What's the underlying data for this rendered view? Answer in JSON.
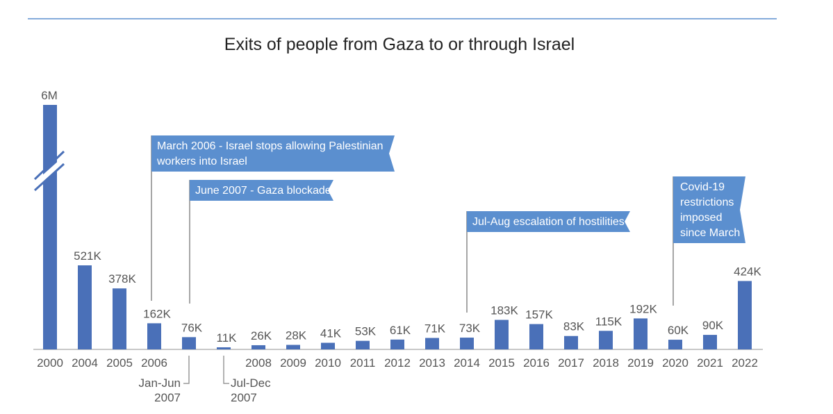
{
  "chart_data": {
    "type": "bar",
    "title": "Exits of people from Gaza to or through Israel",
    "xlabel": "",
    "ylabel": "",
    "axis_break": "between 521K and 6M on first bar",
    "categories": [
      "2000",
      "2004",
      "2005",
      "2006",
      "Jan-Jun 2007",
      "Jul-Dec 2007",
      "2008",
      "2009",
      "2010",
      "2011",
      "2012",
      "2013",
      "2014",
      "2015",
      "2016",
      "2017",
      "2018",
      "2019",
      "2020",
      "2021",
      "2022"
    ],
    "tick_labels": [
      "2000",
      "2004",
      "2005",
      "2006",
      "",
      "",
      "2008",
      "2009",
      "2010",
      "2011",
      "2012",
      "2013",
      "2014",
      "2015",
      "2016",
      "2017",
      "2018",
      "2019",
      "2020",
      "2021",
      "2022"
    ],
    "callout_labels": [
      {
        "index": 4,
        "line1": "Jan-Jun",
        "line2": "2007"
      },
      {
        "index": 5,
        "line1": "Jul-Dec",
        "line2": "2007"
      }
    ],
    "values": [
      6000000,
      521000,
      378000,
      162000,
      76000,
      11000,
      26000,
      28000,
      41000,
      53000,
      61000,
      71000,
      73000,
      183000,
      157000,
      83000,
      115000,
      192000,
      60000,
      90000,
      424000
    ],
    "data_labels": [
      "6M",
      "521K",
      "378K",
      "162K",
      "76K",
      "11K",
      "26K",
      "28K",
      "41K",
      "53K",
      "61K",
      "71K",
      "73K",
      "183K",
      "157K",
      "83K",
      "115K",
      "192K",
      "60K",
      "90K",
      "424K"
    ],
    "annotations": [
      {
        "index": 3,
        "lines": [
          "March 2006 - Israel stops allowing Palestinian",
          "workers into Israel"
        ]
      },
      {
        "index": 4,
        "lines": [
          "June 2007 - Gaza blockade"
        ]
      },
      {
        "index": 12,
        "lines": [
          "Jul-Aug escalation of hostilities"
        ]
      },
      {
        "index": 18,
        "lines": [
          "Covid-19",
          "restrictions",
          "imposed",
          "since March"
        ]
      }
    ],
    "colors": {
      "bar": "#4a70b8",
      "flag": "#5b8fcf",
      "axis": "#c8c8c8",
      "text": "#555555",
      "rule": "#5b8fcf"
    }
  }
}
